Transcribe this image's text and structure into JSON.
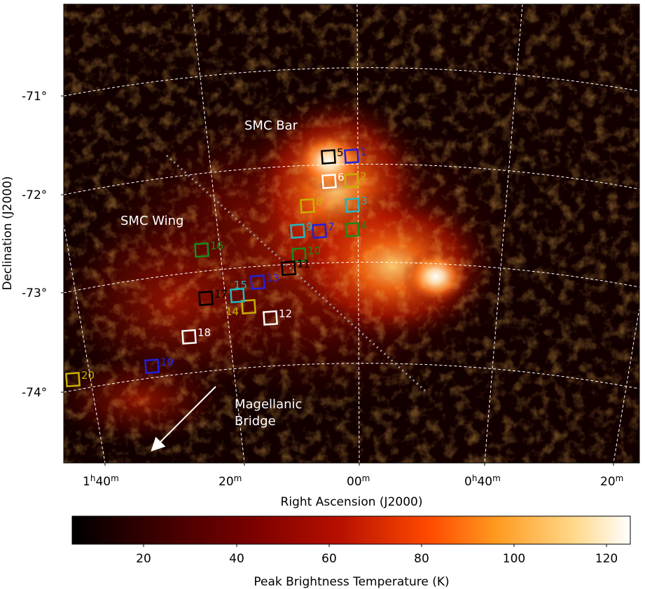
{
  "map": {
    "x_title": "Right Ascension (J2000)",
    "y_title": "Declination (J2000)",
    "ra_ticks": [
      {
        "label": "1",
        "sup": "h",
        "rest": "40",
        "sup2": "m"
      },
      {
        "label": "20",
        "sup": "m",
        "rest": "",
        "sup2": ""
      },
      {
        "label": "00",
        "sup": "m",
        "rest": "",
        "sup2": ""
      },
      {
        "label": "0",
        "sup": "h",
        "rest": "40",
        "sup2": "m"
      },
      {
        "label": "20",
        "sup": "m",
        "rest": "",
        "sup2": ""
      }
    ],
    "dec_ticks": [
      "-71°",
      "-72°",
      "-73°",
      "-74°"
    ],
    "regions": {
      "bar": "SMC Bar",
      "wing": "SMC Wing",
      "bridge_line1": "Magellanic",
      "bridge_line2": "Bridge"
    },
    "fields": [
      {
        "id": "1",
        "color": "#2020e0"
      },
      {
        "id": "2",
        "color": "#c8b000"
      },
      {
        "id": "3",
        "color": "#20b8c0"
      },
      {
        "id": "4",
        "color": "#1a8a1a"
      },
      {
        "id": "5",
        "color": "#000000"
      },
      {
        "id": "6",
        "color": "#ffffff"
      },
      {
        "id": "7",
        "color": "#2020e0"
      },
      {
        "id": "8",
        "color": "#c8b000"
      },
      {
        "id": "9",
        "color": "#20b8c0"
      },
      {
        "id": "10",
        "color": "#1a8a1a"
      },
      {
        "id": "11",
        "color": "#000000"
      },
      {
        "id": "12",
        "color": "#ffffff"
      },
      {
        "id": "13",
        "color": "#2020e0"
      },
      {
        "id": "14",
        "color": "#c8b000"
      },
      {
        "id": "15",
        "color": "#20b8c0"
      },
      {
        "id": "16",
        "color": "#1a8a1a"
      },
      {
        "id": "17",
        "color": "#000000"
      },
      {
        "id": "18",
        "color": "#ffffff"
      },
      {
        "id": "19",
        "color": "#2020e0"
      },
      {
        "id": "20",
        "color": "#c8b000"
      }
    ]
  },
  "colorbar": {
    "title": "Peak Brightness Temperature (K)",
    "ticks": [
      "20",
      "40",
      "60",
      "80",
      "100",
      "120"
    ],
    "stops": [
      "#000000",
      "#3a0000",
      "#7a0000",
      "#b81000",
      "#ff4a00",
      "#ff9a20",
      "#ffd88a",
      "#ffffff"
    ]
  }
}
